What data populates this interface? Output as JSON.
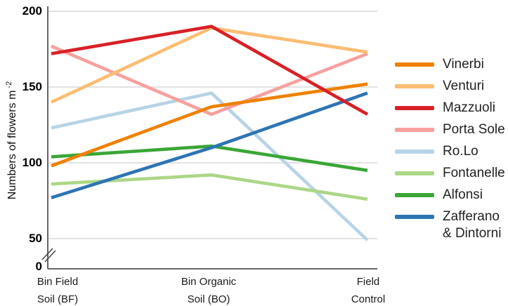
{
  "yaxis": {
    "title_text": "Numbers of flowers m",
    "title_sup": "-2",
    "ticks": [
      "200",
      "150",
      "100",
      "50",
      "0"
    ],
    "has_break": true
  },
  "chart_data": {
    "type": "line",
    "title": "",
    "ylabel": "Numbers of flowers m^-2",
    "xlabel": "",
    "categories": [
      [
        "Bin Field",
        "Soil (BF)"
      ],
      [
        "Bin Organic",
        "Soil (BO)"
      ],
      [
        "Field",
        "Control"
      ]
    ],
    "y_ticks": [
      0,
      50,
      100,
      150,
      200
    ],
    "axis_break": "between 0 and 50",
    "grid": true,
    "legend_position": "right",
    "series": [
      {
        "name": "Vinerbi",
        "label_lines": [
          "Vinerbi"
        ],
        "color": "#ee8100",
        "values": [
          98,
          137,
          152
        ]
      },
      {
        "name": "Venturi",
        "label_lines": [
          "Venturi"
        ],
        "color": "#fabd72",
        "values": [
          140,
          189,
          173
        ]
      },
      {
        "name": "Mazzuoli",
        "label_lines": [
          "Mazzuoli"
        ],
        "color": "#d92027",
        "values": [
          172,
          190,
          132
        ]
      },
      {
        "name": "Porta Sole",
        "label_lines": [
          "Porta Sole"
        ],
        "color": "#f7a09e",
        "values": [
          177,
          132,
          172
        ]
      },
      {
        "name": "Ro.Lo",
        "label_lines": [
          "Ro.Lo"
        ],
        "color": "#b7d3e6",
        "values": [
          123,
          146,
          49
        ]
      },
      {
        "name": "Fontanelle",
        "label_lines": [
          "Fontanelle"
        ],
        "color": "#acd787",
        "values": [
          86,
          92,
          76
        ]
      },
      {
        "name": "Alfonsi",
        "label_lines": [
          "Alfonsi"
        ],
        "color": "#3aa636",
        "values": [
          104,
          111,
          95
        ]
      },
      {
        "name": "Zafferano & Dintorni",
        "label_lines": [
          "Zafferano",
          "& Dintorni"
        ],
        "color": "#2d74b4",
        "values": [
          77,
          110,
          146
        ]
      }
    ],
    "draw_order": [
      "Ro.Lo",
      "Fontanelle",
      "Porta Sole",
      "Venturi",
      "Alfonsi",
      "Zafferano & Dintorni",
      "Vinerbi",
      "Mazzuoli"
    ]
  },
  "colors": {
    "gridline": "#d9d9d9",
    "axis": "#666666",
    "text": "#1a1a1a"
  }
}
